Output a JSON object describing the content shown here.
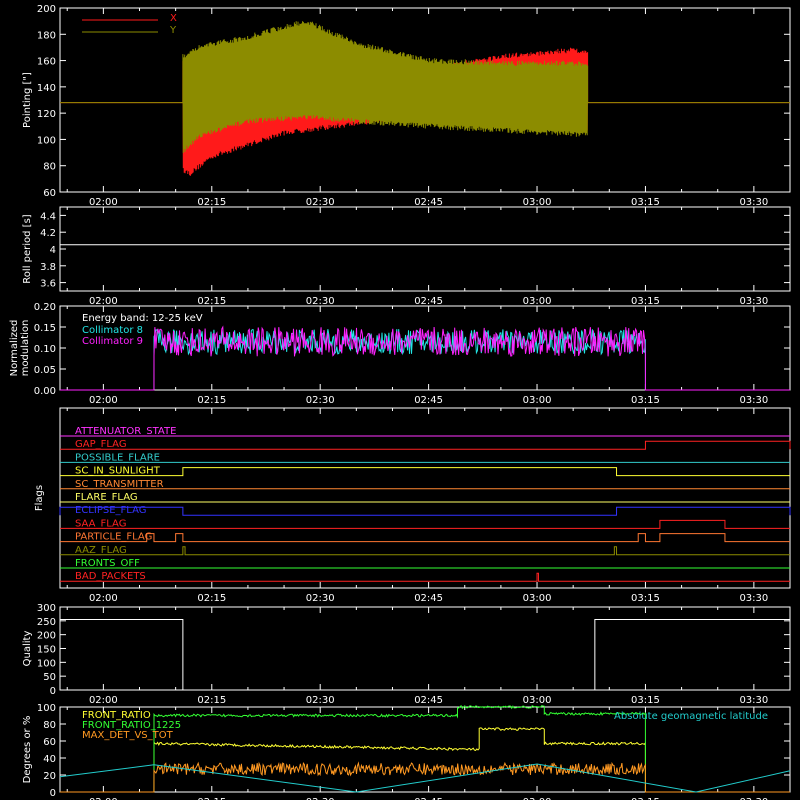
{
  "colors": {
    "background": "#000000",
    "axes": "#ffffff",
    "pointing_x": "#ff1a1a",
    "pointing_y": "#8c8c00",
    "roll": "#ffffff",
    "coll8": "#22e6e6",
    "coll9": "#ff22ff",
    "quality": "#ffffff",
    "front_ratio": "#ffff33",
    "front_ratio_1225": "#33ff33",
    "max_det": "#ff9922",
    "geomag": "#22cccc"
  },
  "chart_data": [
    {
      "id": "pointing",
      "type": "line",
      "ylabel": "Pointing [\"]",
      "ylim": [
        60,
        200
      ],
      "yticks": [
        60,
        80,
        100,
        120,
        140,
        160,
        180,
        200
      ],
      "xticks": [
        "02:00",
        "02:15",
        "02:30",
        "02:45",
        "03:00",
        "03:15",
        "03:30"
      ],
      "legend": [
        {
          "name": "X",
          "color": "#ff1a1a"
        },
        {
          "name": "Y",
          "color": "#8c8c00"
        }
      ],
      "series": [
        {
          "name": "X",
          "baseline": 128,
          "start": "02:11",
          "end": "03:07",
          "envelope_time": [
            "02:11",
            "02:12",
            "02:15",
            "02:25",
            "02:35",
            "02:45",
            "02:55",
            "03:05",
            "03:07"
          ],
          "envelope_low": [
            75,
            72,
            85,
            103,
            110,
            118,
            112,
            105,
            105
          ],
          "envelope_high": [
            160,
            165,
            165,
            150,
            147,
            155,
            165,
            170,
            168
          ]
        },
        {
          "name": "Y",
          "baseline": 128,
          "start": "02:11",
          "end": "03:07",
          "envelope_time": [
            "02:11",
            "02:13",
            "02:20",
            "02:28",
            "02:35",
            "02:45",
            "02:55",
            "03:05",
            "03:07"
          ],
          "envelope_low": [
            88,
            100,
            112,
            115,
            112,
            108,
            105,
            102,
            102
          ],
          "envelope_high": [
            165,
            172,
            180,
            192,
            175,
            162,
            160,
            160,
            160
          ]
        }
      ]
    },
    {
      "id": "roll",
      "type": "line",
      "ylabel": "Roll period [s]",
      "ylim": [
        3.5,
        4.5
      ],
      "yticks": [
        3.6,
        3.8,
        4.0,
        4.2,
        4.4
      ],
      "xticks": [
        "02:00",
        "02:15",
        "02:30",
        "02:45",
        "03:00",
        "03:15",
        "03:30"
      ],
      "series": [
        {
          "name": "",
          "value": 4.05
        }
      ]
    },
    {
      "id": "modulation",
      "type": "line",
      "ylabel": "Normalized modulation",
      "ylim": [
        0.0,
        0.2
      ],
      "yticks": [
        0.0,
        0.05,
        0.1,
        0.15,
        0.2
      ],
      "ytick_labels": [
        "0.00",
        "0.05",
        "0.10",
        "0.15",
        "0.20"
      ],
      "xticks": [
        "02:00",
        "02:15",
        "02:30",
        "02:45",
        "03:00",
        "03:15",
        "03:30"
      ],
      "annotation": "Energy band: 12-25 keV",
      "series": [
        {
          "name": "Collimator 8",
          "color": "#22e6e6",
          "start": "02:07",
          "end": "03:15",
          "mean": 0.115,
          "spread": 0.03
        },
        {
          "name": "Collimator 9",
          "color": "#ff22ff",
          "start": "02:07",
          "end": "03:15",
          "mean": 0.115,
          "spread": 0.035
        }
      ]
    },
    {
      "id": "flags",
      "type": "line",
      "ylabel": "Flags",
      "xticks": [
        "02:00",
        "02:15",
        "02:30",
        "02:45",
        "03:00",
        "03:15",
        "03:30"
      ],
      "series": [
        {
          "name": "ATTENUATOR_STATE",
          "color": "#ff33ff",
          "events": []
        },
        {
          "name": "GAP_FLAG",
          "color": "#ff2222",
          "events": [
            [
              "03:15",
              "03:35"
            ]
          ]
        },
        {
          "name": "POSSIBLE_FLARE",
          "color": "#33cccc",
          "events": []
        },
        {
          "name": "SC_IN_SUNLIGHT",
          "color": "#ffff33",
          "events": [
            [
              "02:11",
              "03:11"
            ]
          ]
        },
        {
          "name": "SC_TRANSMITTER",
          "color": "#ff8833",
          "events": []
        },
        {
          "name": "FLARE_FLAG",
          "color": "#ffff66",
          "events": []
        },
        {
          "name": "ECLIPSE_FLAG",
          "color": "#3333ff",
          "events": [
            [
              "01:54",
              "02:11"
            ],
            [
              "03:11",
              "03:35"
            ]
          ]
        },
        {
          "name": "SAA_FLAG",
          "color": "#ff2222",
          "events": [
            [
              "03:17",
              "03:26"
            ]
          ]
        },
        {
          "name": "PARTICLE_FLAG",
          "color": "#ff7733",
          "events": [
            [
              "02:06",
              "02:07"
            ],
            [
              "02:10",
              "02:11"
            ],
            [
              "03:14",
              "03:15"
            ],
            [
              "03:17",
              "03:26"
            ]
          ]
        },
        {
          "name": "AAZ_FLAG",
          "color": "#8c8c00",
          "events": [
            [
              "02:11",
              "02:11.3"
            ],
            [
              "03:10.7",
              "03:11"
            ]
          ]
        },
        {
          "name": "FRONTS_OFF",
          "color": "#33ff33",
          "events": []
        },
        {
          "name": "BAD_PACKETS",
          "color": "#ff2222",
          "events": [
            [
              "03:00",
              "03:00.2"
            ]
          ]
        }
      ]
    },
    {
      "id": "quality",
      "type": "line",
      "ylabel": "Quality",
      "ylim": [
        0,
        300
      ],
      "yticks": [
        0,
        50,
        100,
        150,
        200,
        250,
        300
      ],
      "xticks": [
        "02:00",
        "02:15",
        "02:30",
        "02:45",
        "03:00",
        "03:15",
        "03:30"
      ],
      "series": [
        {
          "name": "",
          "segments": [
            [
              "01:54",
              "02:11",
              255
            ],
            [
              "02:11",
              "03:08",
              0
            ],
            [
              "03:08",
              "03:35",
              255
            ]
          ]
        }
      ]
    },
    {
      "id": "geomag",
      "type": "line",
      "ylabel": "Degrees or %",
      "ylim": [
        0,
        100
      ],
      "yticks": [
        0,
        20,
        40,
        60,
        80,
        100
      ],
      "xticks": [
        "02:00",
        "02:15",
        "02:30",
        "02:45",
        "03:00",
        "03:15",
        "03:30"
      ],
      "legend": [
        {
          "name": "FRONT_RATIO",
          "color": "#ffff33"
        },
        {
          "name": "FRONT_RATIO_1225",
          "color": "#33ff33"
        },
        {
          "name": "MAX_DET_VS_TOT",
          "color": "#ff9922"
        }
      ],
      "annotation": "Absolute geomagnetic latitude",
      "series": [
        {
          "name": "FRONT_RATIO",
          "color": "#ffff33",
          "segments": [
            [
              "02:07",
              "02:52",
              57,
              50
            ],
            [
              "02:52",
              "03:01",
              74,
              74
            ],
            [
              "03:01",
              "03:15",
              57,
              57
            ]
          ]
        },
        {
          "name": "FRONT_RATIO_1225",
          "color": "#33ff33",
          "segments": [
            [
              "02:07",
              "02:49",
              90,
              90
            ],
            [
              "02:49",
              "03:01",
              100,
              100
            ],
            [
              "03:01",
              "03:15",
              92,
              92
            ]
          ]
        },
        {
          "name": "MAX_DET_VS_TOT",
          "color": "#ff9922",
          "start": "02:07",
          "end": "03:15",
          "mean": 27,
          "spread": 7
        },
        {
          "name": "Absolute geomagnetic latitude",
          "color": "#22cccc",
          "x": [
            "01:54",
            "02:07",
            "02:35",
            "03:00",
            "03:22",
            "03:35"
          ],
          "y": [
            18,
            32,
            0,
            33,
            0,
            25
          ]
        }
      ]
    }
  ]
}
